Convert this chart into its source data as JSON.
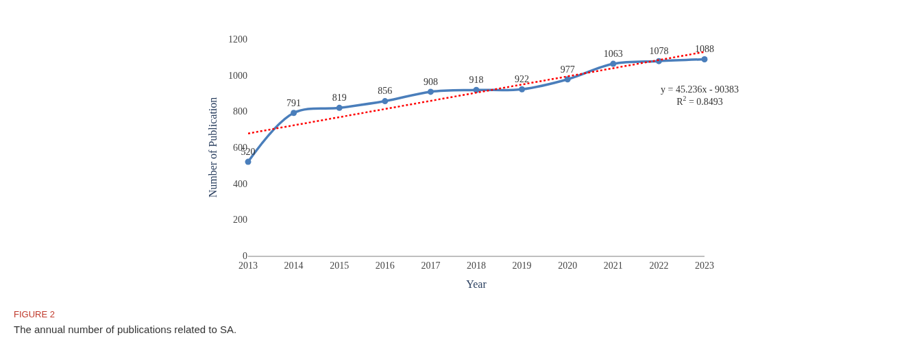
{
  "chart_data": {
    "type": "line",
    "xlabel": "Year",
    "ylabel": "Number of Publication",
    "x": [
      2013,
      2014,
      2015,
      2016,
      2017,
      2018,
      2019,
      2020,
      2021,
      2022,
      2023
    ],
    "series": [
      {
        "color": "#4a7ebb",
        "values": [
          520,
          791,
          819,
          856,
          908,
          918,
          922,
          977,
          1063,
          1078,
          1088
        ],
        "marker": "circle",
        "line_style": "solid",
        "data_labels": true
      },
      {
        "type": "line",
        "color": "#ff0000",
        "x": [
          2013,
          2023
        ],
        "values": [
          677,
          1129
        ],
        "marker": "none",
        "line_style": "dotted"
      }
    ],
    "xlim": [
      2013,
      2023
    ],
    "xticks": [
      2013,
      2014,
      2015,
      2016,
      2017,
      2018,
      2019,
      2020,
      2021,
      2022,
      2023
    ],
    "ylim": [
      0,
      1200
    ],
    "yticks": [
      0,
      200,
      400,
      600,
      800,
      1000,
      1200
    ],
    "annotations": [
      "y = 45.236x - 90383",
      "R$^{2}$ = 0.8493",
      "FIGURE 2",
      "The annual number of publications related to SA."
    ]
  }
}
